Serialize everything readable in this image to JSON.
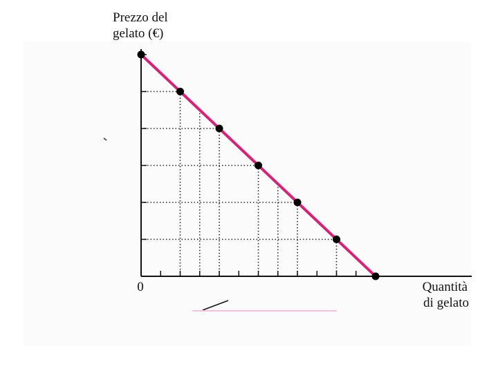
{
  "chart_data": {
    "type": "line",
    "ylabel": [
      "Prezzo del",
      "gelato (€)"
    ],
    "xlabel": [
      "Quantità",
      "di gelato"
    ],
    "origin_label": "0",
    "xlim": [
      0,
      12
    ],
    "ylim": [
      0,
      12
    ],
    "series": [
      {
        "x": [
          0,
          2,
          4,
          6,
          8,
          10,
          12
        ],
        "y": [
          12,
          10,
          8,
          6,
          4,
          2,
          0
        ]
      }
    ],
    "colors": {
      "line": "#d6237a",
      "points": "#000000",
      "axes": "#111111",
      "grid": "#222222"
    }
  }
}
